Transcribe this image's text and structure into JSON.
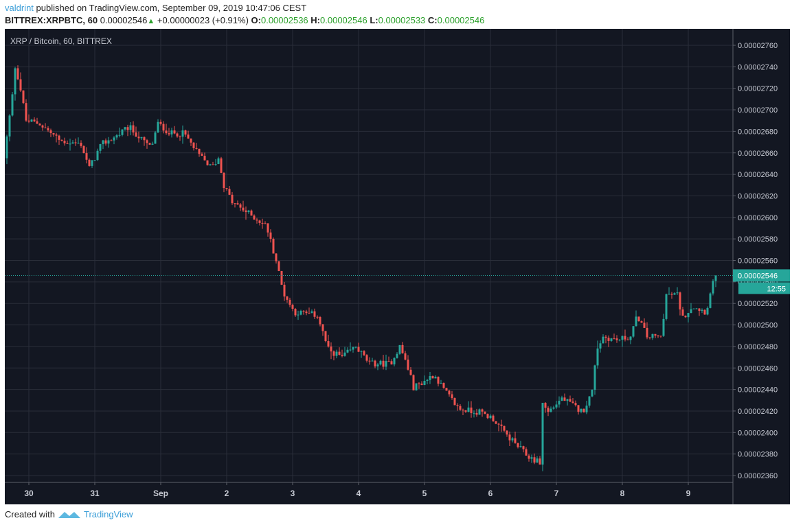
{
  "header": {
    "user": "valdrint",
    "published": "published on TradingView.com, September 09, 2019 10:47:06 CEST",
    "symbol": "BITTREX:XRPBTC, 60",
    "last": "0.00002546",
    "change": "+0.00000023 (+0.91%)",
    "o_label": "O:",
    "o": "0.00002536",
    "h_label": "H:",
    "h": "0.00002546",
    "l_label": "L:",
    "l": "0.00002533",
    "c_label": "C:",
    "c": "0.00002546"
  },
  "footer": {
    "created": "Created with",
    "brand": "TradingView"
  },
  "chart_data": {
    "type": "candlestick",
    "title": "XRP / Bitcoin, 60, BITTREX",
    "price_unit_note": "prices in units of 0.00000001 BTC",
    "colors": {
      "up": "#26a69a",
      "down": "#ef5350",
      "bg": "#131722",
      "grid": "#2a2e39"
    },
    "ylim": [
      2350,
      2775
    ],
    "y_ticks": [
      2360,
      2380,
      2400,
      2420,
      2440,
      2460,
      2480,
      2500,
      2520,
      2540,
      2560,
      2580,
      2600,
      2620,
      2640,
      2660,
      2680,
      2700,
      2720,
      2740,
      2760
    ],
    "y_tick_labels": [
      "0.00002360",
      "0.00002380",
      "0.00002400",
      "0.00002420",
      "0.00002440",
      "0.00002460",
      "0.00002480",
      "0.00002500",
      "0.00002520",
      "0.00002540",
      "0.00002560",
      "0.00002580",
      "0.00002600",
      "0.00002620",
      "0.00002640",
      "0.00002660",
      "0.00002680",
      "0.00002700",
      "0.00002720",
      "0.00002740",
      "0.00002760"
    ],
    "x_ticks_hours": [
      8,
      32,
      56,
      80,
      104,
      128,
      152,
      176,
      200,
      224,
      248
    ],
    "x_tick_labels": [
      "30",
      "31",
      "Sep",
      "2",
      "3",
      "4",
      "5",
      "6",
      "7",
      "8",
      "9"
    ],
    "candle_count": 259,
    "price_path_hours_close": [
      [
        0,
        2655
      ],
      [
        3,
        2713
      ],
      [
        3.5,
        2745
      ],
      [
        5.5,
        2726
      ],
      [
        8,
        2690
      ],
      [
        13,
        2687
      ],
      [
        20.5,
        2671
      ],
      [
        28,
        2668
      ],
      [
        31,
        2646
      ],
      [
        35.5,
        2668
      ],
      [
        40.5,
        2675
      ],
      [
        45.5,
        2684
      ],
      [
        50.5,
        2671
      ],
      [
        53.5,
        2665
      ],
      [
        56,
        2687
      ],
      [
        60.5,
        2678
      ],
      [
        65.5,
        2678
      ],
      [
        70.5,
        2659
      ],
      [
        75.5,
        2646
      ],
      [
        78,
        2655
      ],
      [
        80,
        2630
      ],
      [
        83,
        2614
      ],
      [
        90.5,
        2601
      ],
      [
        95.5,
        2592
      ],
      [
        99,
        2560
      ],
      [
        101.5,
        2531
      ],
      [
        105.5,
        2512
      ],
      [
        114,
        2509
      ],
      [
        118,
        2477
      ],
      [
        123,
        2470
      ],
      [
        128,
        2480
      ],
      [
        133,
        2464
      ],
      [
        140.5,
        2464
      ],
      [
        144,
        2480
      ],
      [
        146.5,
        2464
      ],
      [
        149,
        2442
      ],
      [
        153,
        2448
      ],
      [
        156.5,
        2454
      ],
      [
        160.5,
        2438
      ],
      [
        165.5,
        2422
      ],
      [
        173,
        2419
      ],
      [
        178,
        2413
      ],
      [
        182,
        2400
      ],
      [
        185.5,
        2391
      ],
      [
        190.5,
        2378
      ],
      [
        195,
        2372
      ],
      [
        195.5,
        2429
      ],
      [
        198,
        2419
      ],
      [
        203,
        2432
      ],
      [
        210.5,
        2419
      ],
      [
        214,
        2438
      ],
      [
        215.5,
        2477
      ],
      [
        218,
        2489
      ],
      [
        223,
        2486
      ],
      [
        228,
        2489
      ],
      [
        230.5,
        2509
      ],
      [
        234,
        2489
      ],
      [
        239,
        2489
      ],
      [
        241,
        2528
      ],
      [
        245.5,
        2528
      ],
      [
        246.5,
        2505
      ],
      [
        250.5,
        2518
      ],
      [
        255.5,
        2512
      ],
      [
        257.5,
        2534
      ],
      [
        259,
        2546
      ]
    ],
    "last_price": 2546,
    "last_price_label": "0.00002546",
    "countdown": "12:55"
  }
}
